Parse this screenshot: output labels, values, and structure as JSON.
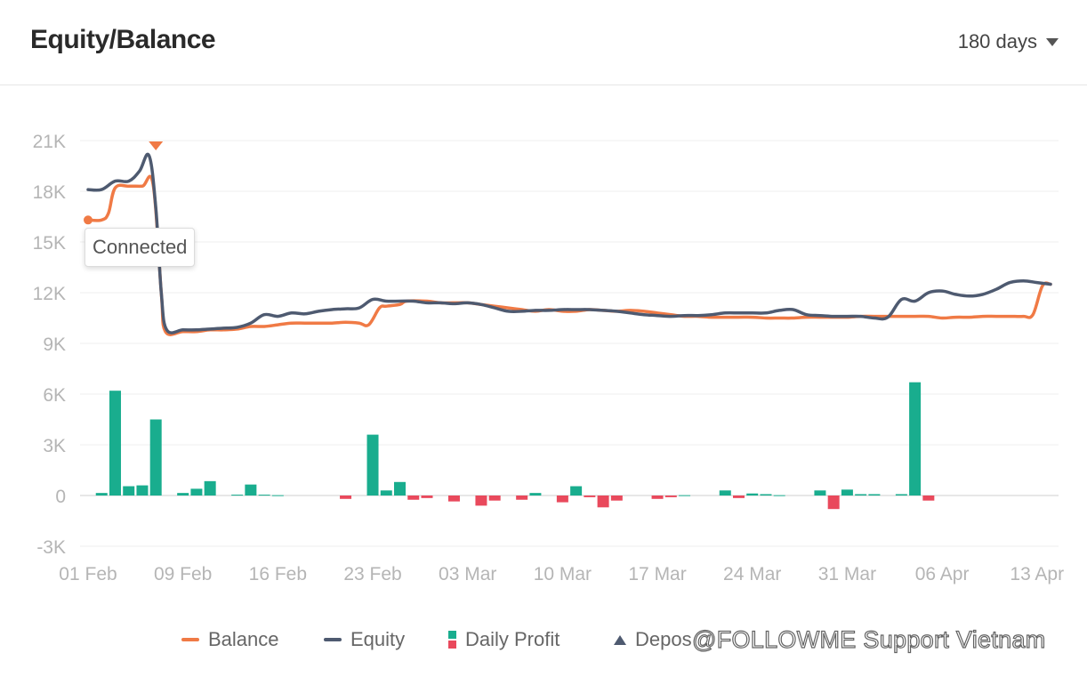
{
  "header": {
    "title": "Equity/Balance",
    "range_label": "180 days"
  },
  "tooltip": {
    "text": "Connected"
  },
  "legend": {
    "balance": "Balance",
    "equity": "Equity",
    "daily_profit": "Daily Profit",
    "deposit": "Depos"
  },
  "watermark": {
    "text": "@FOLLOWME Support Vietnam"
  },
  "colors": {
    "balance": "#f07a45",
    "equity": "#4e5a70",
    "profit_up": "#19ad8e",
    "profit_down": "#e9495c",
    "grid": "#efefef",
    "axis_text": "#b5b5b5"
  },
  "chart_data": {
    "type": "line",
    "x_range": [
      0,
      71
    ],
    "ylim": [
      -3000,
      21000
    ],
    "y_ticks": [
      {
        "v": 21000,
        "label": "21K"
      },
      {
        "v": 18000,
        "label": "18K"
      },
      {
        "v": 15000,
        "label": "15K"
      },
      {
        "v": 12000,
        "label": "12K"
      },
      {
        "v": 9000,
        "label": "9K"
      },
      {
        "v": 6000,
        "label": "6K"
      },
      {
        "v": 3000,
        "label": "3K"
      },
      {
        "v": 0,
        "label": "0"
      },
      {
        "v": -3000,
        "label": "-3K"
      }
    ],
    "x_ticks": [
      {
        "x": 0,
        "label": "01 Feb"
      },
      {
        "x": 7,
        "label": "09 Feb"
      },
      {
        "x": 14,
        "label": "16 Feb"
      },
      {
        "x": 21,
        "label": "23 Feb"
      },
      {
        "x": 28,
        "label": "03 Mar"
      },
      {
        "x": 35,
        "label": "10 Mar"
      },
      {
        "x": 42,
        "label": "17 Mar"
      },
      {
        "x": 49,
        "label": "24 Mar"
      },
      {
        "x": 56,
        "label": "31 Mar"
      },
      {
        "x": 63,
        "label": "06 Apr"
      },
      {
        "x": 70,
        "label": "13 Apr"
      }
    ],
    "series": [
      {
        "name": "Balance",
        "points": [
          [
            0,
            16300
          ],
          [
            1,
            16300
          ],
          [
            1.5,
            16700
          ],
          [
            2,
            18200
          ],
          [
            3,
            18300
          ],
          [
            4,
            18300
          ],
          [
            4.8,
            18400
          ],
          [
            5.4,
            12000
          ],
          [
            5.7,
            9700
          ],
          [
            7,
            9700
          ],
          [
            8,
            9700
          ],
          [
            9,
            9800
          ],
          [
            10,
            9800
          ],
          [
            11,
            9850
          ],
          [
            12,
            10000
          ],
          [
            13,
            10000
          ],
          [
            14,
            10100
          ],
          [
            15,
            10200
          ],
          [
            16,
            10200
          ],
          [
            17,
            10200
          ],
          [
            18,
            10200
          ],
          [
            19,
            10250
          ],
          [
            20,
            10200
          ],
          [
            20.7,
            10100
          ],
          [
            21.5,
            11100
          ],
          [
            22,
            11200
          ],
          [
            23,
            11300
          ],
          [
            23.5,
            11500
          ],
          [
            25,
            11500
          ],
          [
            26,
            11400
          ],
          [
            27,
            11400
          ],
          [
            28,
            11400
          ],
          [
            29,
            11300
          ],
          [
            30,
            11200
          ],
          [
            31,
            11100
          ],
          [
            32,
            11000
          ],
          [
            33,
            10900
          ],
          [
            34,
            11000
          ],
          [
            35,
            10900
          ],
          [
            36,
            10900
          ],
          [
            37,
            11000
          ],
          [
            38,
            10950
          ],
          [
            39,
            10900
          ],
          [
            40,
            10950
          ],
          [
            41,
            10900
          ],
          [
            42,
            10800
          ],
          [
            43,
            10700
          ],
          [
            44,
            10600
          ],
          [
            45,
            10600
          ],
          [
            46,
            10550
          ],
          [
            47,
            10550
          ],
          [
            48,
            10550
          ],
          [
            49,
            10550
          ],
          [
            50,
            10500
          ],
          [
            51,
            10500
          ],
          [
            52,
            10500
          ],
          [
            53,
            10550
          ],
          [
            54,
            10550
          ],
          [
            55,
            10550
          ],
          [
            56,
            10550
          ],
          [
            57,
            10600
          ],
          [
            58,
            10600
          ],
          [
            59,
            10600
          ],
          [
            60,
            10600
          ],
          [
            61,
            10600
          ],
          [
            62,
            10600
          ],
          [
            63,
            10500
          ],
          [
            64,
            10550
          ],
          [
            65,
            10550
          ],
          [
            66,
            10600
          ],
          [
            67,
            10600
          ],
          [
            68,
            10600
          ],
          [
            69,
            10600
          ],
          [
            69.7,
            10700
          ],
          [
            70.4,
            12400
          ],
          [
            71,
            12500
          ]
        ]
      },
      {
        "name": "Equity",
        "points": [
          [
            0,
            18100
          ],
          [
            1,
            18100
          ],
          [
            2,
            18600
          ],
          [
            3,
            18600
          ],
          [
            3.8,
            19200
          ],
          [
            4.5,
            20100
          ],
          [
            5,
            17000
          ],
          [
            5.4,
            12000
          ],
          [
            5.8,
            9800
          ],
          [
            7,
            9800
          ],
          [
            8,
            9800
          ],
          [
            9,
            9850
          ],
          [
            10,
            9900
          ],
          [
            11,
            9950
          ],
          [
            12,
            10200
          ],
          [
            13,
            10700
          ],
          [
            14,
            10600
          ],
          [
            15,
            10800
          ],
          [
            16,
            10750
          ],
          [
            17,
            10900
          ],
          [
            18,
            11000
          ],
          [
            19,
            11050
          ],
          [
            20,
            11100
          ],
          [
            21,
            11600
          ],
          [
            22,
            11500
          ],
          [
            23,
            11500
          ],
          [
            24,
            11500
          ],
          [
            25,
            11400
          ],
          [
            26,
            11400
          ],
          [
            27,
            11350
          ],
          [
            28,
            11400
          ],
          [
            29,
            11300
          ],
          [
            30,
            11100
          ],
          [
            31,
            10900
          ],
          [
            32,
            10900
          ],
          [
            33,
            10950
          ],
          [
            34,
            10950
          ],
          [
            35,
            11000
          ],
          [
            36,
            11000
          ],
          [
            37,
            11000
          ],
          [
            38,
            10950
          ],
          [
            39,
            10900
          ],
          [
            40,
            10800
          ],
          [
            41,
            10700
          ],
          [
            42,
            10650
          ],
          [
            43,
            10600
          ],
          [
            44,
            10650
          ],
          [
            45,
            10650
          ],
          [
            46,
            10700
          ],
          [
            47,
            10800
          ],
          [
            48,
            10800
          ],
          [
            49,
            10800
          ],
          [
            50,
            10800
          ],
          [
            51,
            10950
          ],
          [
            52,
            11000
          ],
          [
            53,
            10700
          ],
          [
            54,
            10650
          ],
          [
            55,
            10600
          ],
          [
            56,
            10600
          ],
          [
            57,
            10600
          ],
          [
            58,
            10500
          ],
          [
            59,
            10550
          ],
          [
            60,
            11600
          ],
          [
            61,
            11500
          ],
          [
            62,
            12000
          ],
          [
            63,
            12100
          ],
          [
            64,
            11900
          ],
          [
            65,
            11800
          ],
          [
            66,
            11900
          ],
          [
            67,
            12200
          ],
          [
            68,
            12600
          ],
          [
            69,
            12700
          ],
          [
            70,
            12600
          ],
          [
            71,
            12500
          ]
        ]
      }
    ],
    "bars": {
      "name": "Daily Profit",
      "points": [
        [
          1,
          150
        ],
        [
          2,
          6200
        ],
        [
          3,
          550
        ],
        [
          4,
          600
        ],
        [
          5,
          4500
        ],
        [
          7,
          150
        ],
        [
          8,
          400
        ],
        [
          9,
          850
        ],
        [
          11,
          50
        ],
        [
          12,
          650
        ],
        [
          13,
          50
        ],
        [
          14,
          20
        ],
        [
          19,
          -200
        ],
        [
          21,
          3600
        ],
        [
          22,
          300
        ],
        [
          23,
          800
        ],
        [
          24,
          -250
        ],
        [
          25,
          -150
        ],
        [
          27,
          -350
        ],
        [
          29,
          -600
        ],
        [
          30,
          -300
        ],
        [
          32,
          -250
        ],
        [
          33,
          150
        ],
        [
          35,
          -400
        ],
        [
          36,
          550
        ],
        [
          37,
          -100
        ],
        [
          38,
          -700
        ],
        [
          39,
          -300
        ],
        [
          42,
          -200
        ],
        [
          43,
          -100
        ],
        [
          44,
          20
        ],
        [
          47,
          300
        ],
        [
          48,
          -150
        ],
        [
          49,
          120
        ],
        [
          50,
          80
        ],
        [
          51,
          20
        ],
        [
          54,
          300
        ],
        [
          55,
          -800
        ],
        [
          56,
          350
        ],
        [
          57,
          80
        ],
        [
          58,
          80
        ],
        [
          60,
          80
        ],
        [
          61,
          6700
        ],
        [
          62,
          -300
        ]
      ]
    },
    "deposit_marker": {
      "x": 5
    }
  }
}
